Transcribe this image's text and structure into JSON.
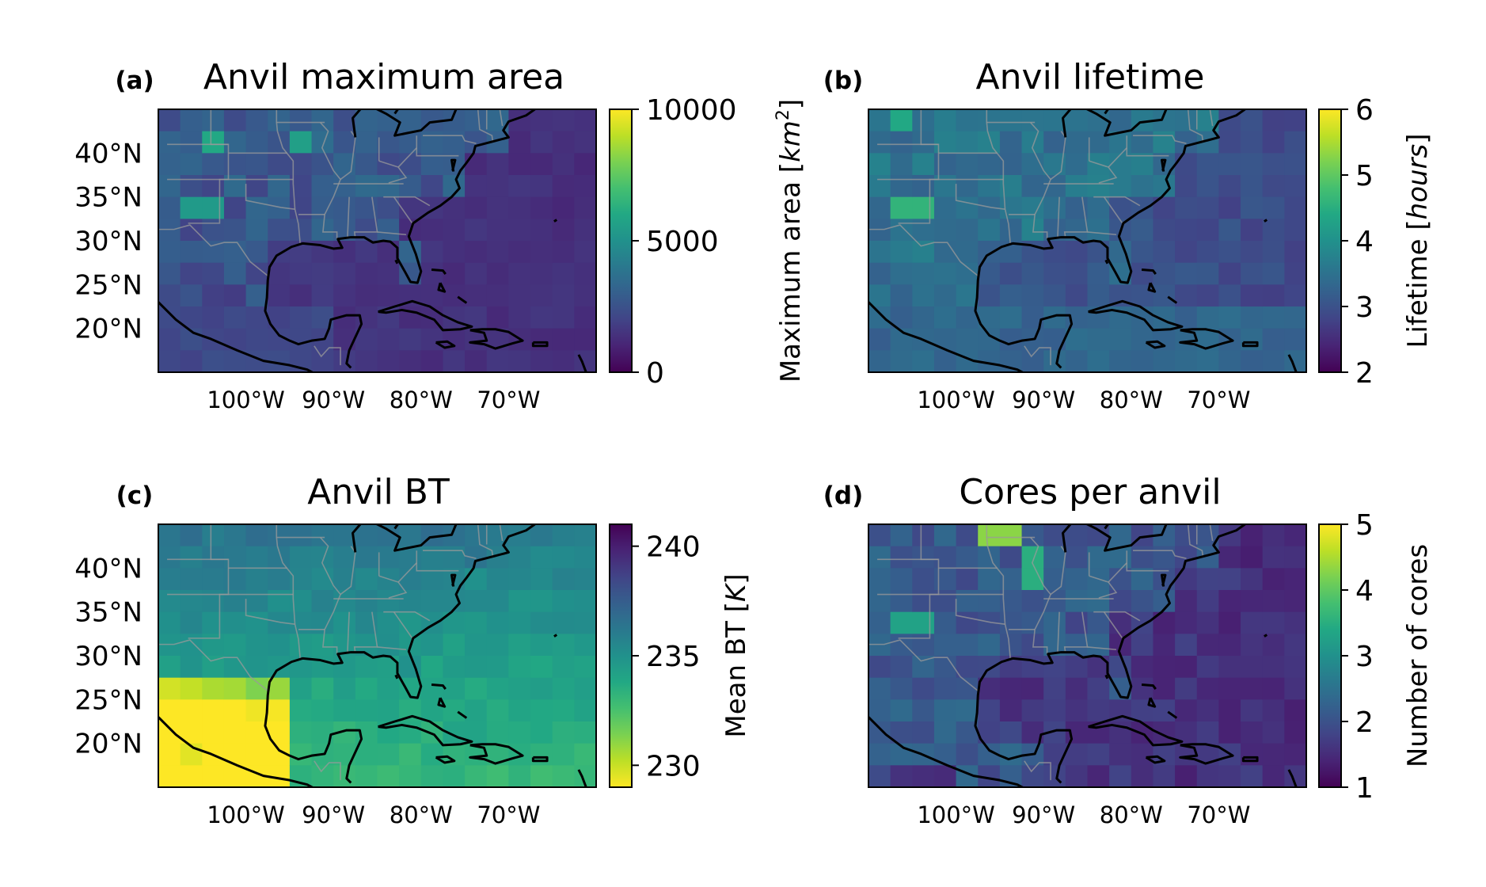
{
  "panels": [
    {
      "letter": "(a)",
      "title": "Anvil maximum area",
      "colorbar": {
        "label": "Maximum area [km²]",
        "label_plain": "Maximum area [",
        "label_italic": "km",
        "label_sup": "2",
        "label_close": "]",
        "ticks": [
          "0",
          "5000",
          "10000"
        ],
        "tick_values": [
          0,
          5000,
          10000
        ],
        "range": [
          0,
          10000
        ],
        "colormap": "viridis",
        "reversed": false
      },
      "lat_labels": [
        "40°N",
        "35°N",
        "30°N",
        "25°N",
        "20°N"
      ],
      "lon_labels": [
        "100°W",
        "90°W",
        "80°W",
        "70°W"
      ],
      "field": "maximum_area",
      "typical_value": 2000,
      "hotspots": [
        {
          "lon": -103,
          "lat": 41,
          "value": 6000
        },
        {
          "lon": -94,
          "lat": 41,
          "value": 5600
        },
        {
          "lon": -105,
          "lat": 33,
          "value": 5400
        }
      ]
    },
    {
      "letter": "(b)",
      "title": "Anvil lifetime",
      "colorbar": {
        "label": "Lifetime [hours]",
        "label_plain": "Lifetime [",
        "label_italic": "hours",
        "label_sup": "",
        "label_close": "]",
        "ticks": [
          "2",
          "3",
          "4",
          "5",
          "6"
        ],
        "tick_values": [
          2,
          3,
          4,
          5,
          6
        ],
        "range": [
          2,
          6
        ],
        "colormap": "viridis",
        "reversed": false
      },
      "lat_labels": [],
      "lon_labels": [
        "100°W",
        "90°W",
        "80°W",
        "70°W"
      ],
      "field": "lifetime",
      "typical_value": 3.2,
      "hotspots": [
        {
          "lon": -105,
          "lat": 34,
          "value": 4.6
        },
        {
          "lon": -107,
          "lat": 43,
          "value": 4.4
        }
      ]
    },
    {
      "letter": "(c)",
      "title": "Anvil BT",
      "colorbar": {
        "label": "Mean BT [K]",
        "label_plain": "Mean BT [",
        "label_italic": "K",
        "label_sup": "",
        "label_close": "]",
        "ticks": [
          "230",
          "235",
          "240"
        ],
        "tick_values": [
          230,
          235,
          240
        ],
        "range": [
          229,
          241
        ],
        "colormap": "viridis_r",
        "reversed": true
      },
      "lat_labels": [
        "40°N",
        "35°N",
        "30°N",
        "25°N",
        "20°N"
      ],
      "lon_labels": [
        "100°W",
        "90°W",
        "80°W",
        "70°W"
      ],
      "field": "mean_bt",
      "typical_value": 235,
      "hotspots": [
        {
          "lon": -106,
          "lat": 18,
          "value": 229.5
        }
      ]
    },
    {
      "letter": "(d)",
      "title": "Cores per anvil",
      "colorbar": {
        "label": "Number of cores",
        "label_plain": "Number of cores",
        "label_italic": "",
        "label_sup": "",
        "label_close": "",
        "ticks": [
          "1",
          "2",
          "3",
          "4",
          "5"
        ],
        "tick_values": [
          1,
          2,
          3,
          4,
          5
        ],
        "range": [
          1,
          5
        ],
        "colormap": "viridis",
        "reversed": false
      },
      "lat_labels": [],
      "lon_labels": [
        "100°W",
        "90°W",
        "80°W",
        "70°W"
      ],
      "field": "cores_per_anvil",
      "typical_value": 1.8,
      "hotspots": [
        {
          "lon": -95,
          "lat": 43,
          "value": 4.3
        },
        {
          "lon": -91,
          "lat": 40,
          "value": 3.5
        },
        {
          "lon": -105,
          "lat": 33,
          "value": 3.3
        }
      ]
    }
  ],
  "map": {
    "lon_range": [
      -110,
      -60
    ],
    "lat_range": [
      15,
      45
    ],
    "grid_deg": 2.5,
    "coastline_color": "#000000",
    "borders_color": "#9a9a9a"
  }
}
